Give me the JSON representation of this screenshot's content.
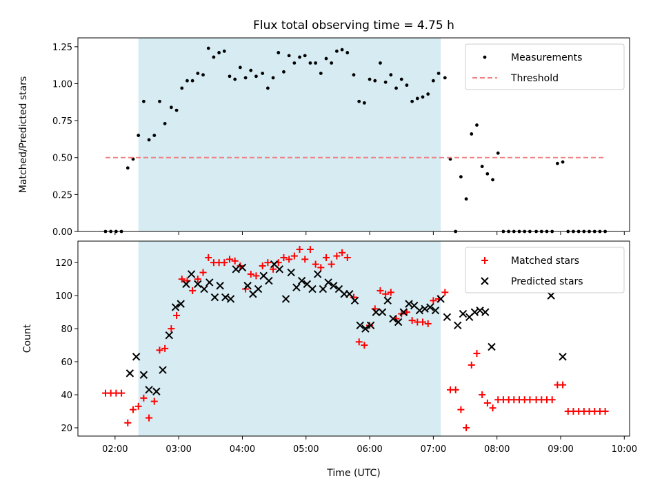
{
  "chart_data": [
    {
      "type": "scatter",
      "title": "Flux total observing time = 4.75 h",
      "xlabel": "",
      "ylabel": "Matched/Predicted stars",
      "xlim": [
        "01:25",
        "10:05"
      ],
      "ylim": [
        0,
        1.31
      ],
      "yticks": [
        "0.00",
        "0.25",
        "0.50",
        "0.75",
        "1.00",
        "1.25"
      ],
      "xticks": [
        "02:00",
        "03:00",
        "04:00",
        "05:00",
        "06:00",
        "07:00",
        "08:00",
        "09:00",
        "10:00"
      ],
      "shaded_interval": [
        "02:22",
        "07:07"
      ],
      "legend_position": "upper-right",
      "series": [
        {
          "name": "Measurements",
          "marker": "dot",
          "color": "#000000",
          "x": [
            "01:51",
            "01:56",
            "02:01",
            "02:06",
            "02:12",
            "02:17",
            "02:22",
            "02:27",
            "02:32",
            "02:37",
            "02:42",
            "02:47",
            "02:53",
            "02:58",
            "03:03",
            "03:08",
            "03:13",
            "03:18",
            "03:23",
            "03:28",
            "03:33",
            "03:38",
            "03:43",
            "03:48",
            "03:53",
            "03:58",
            "04:03",
            "04:08",
            "04:13",
            "04:19",
            "04:24",
            "04:29",
            "04:34",
            "04:39",
            "04:44",
            "04:49",
            "04:54",
            "04:59",
            "05:04",
            "05:09",
            "05:14",
            "05:19",
            "05:24",
            "05:29",
            "05:34",
            "05:39",
            "05:45",
            "05:50",
            "05:55",
            "06:00",
            "06:05",
            "06:10",
            "06:15",
            "06:20",
            "06:25",
            "06:30",
            "06:35",
            "06:40",
            "06:45",
            "06:50",
            "06:55",
            "07:00",
            "07:05",
            "07:11",
            "07:16",
            "07:21",
            "07:26",
            "07:31",
            "07:36",
            "07:41",
            "07:46",
            "07:51",
            "07:56",
            "08:01",
            "08:06",
            "08:11",
            "08:16",
            "08:21",
            "08:26",
            "08:31",
            "08:37",
            "08:42",
            "08:47",
            "08:52",
            "08:57",
            "09:02",
            "09:07",
            "09:12",
            "09:17",
            "09:22",
            "09:27",
            "09:32",
            "09:37",
            "09:42"
          ],
          "y": [
            0,
            0,
            0,
            0,
            0.43,
            0.49,
            0.65,
            0.88,
            0.62,
            0.65,
            0.88,
            0.73,
            0.84,
            0.82,
            0.97,
            1.02,
            1.02,
            1.07,
            1.06,
            1.24,
            1.18,
            1.21,
            1.22,
            1.05,
            1.03,
            1.11,
            1.04,
            1.09,
            1.05,
            1.07,
            0.97,
            1.04,
            1.21,
            1.08,
            1.19,
            1.14,
            1.18,
            1.19,
            1.14,
            1.14,
            1.07,
            1.17,
            1.14,
            1.22,
            1.23,
            1.21,
            1.06,
            0.88,
            0.87,
            1.03,
            1.02,
            1.14,
            1.01,
            1.06,
            0.97,
            1.03,
            0.99,
            0.88,
            0.9,
            0.91,
            0.93,
            1.02,
            1.07,
            1.04,
            0.49,
            0,
            0.37,
            0.22,
            0.66,
            0.72,
            0.44,
            0.39,
            0.35,
            0.53,
            0,
            0,
            0,
            0,
            0,
            0,
            0,
            0,
            0,
            0,
            0.46,
            0.47,
            0,
            0,
            0,
            0,
            0,
            0,
            0,
            0
          ]
        },
        {
          "name": "Threshold",
          "marker": "dashed-line",
          "color": "#f08080",
          "x": [
            "01:51",
            "09:42"
          ],
          "y": [
            0.5,
            0.5
          ]
        }
      ]
    },
    {
      "type": "scatter",
      "title": "",
      "xlabel": "Time (UTC)",
      "ylabel": "Count",
      "xlim": [
        "01:25",
        "10:05"
      ],
      "ylim": [
        15,
        133
      ],
      "yticks": [
        "20",
        "40",
        "60",
        "80",
        "100",
        "120"
      ],
      "xticks": [
        "02:00",
        "03:00",
        "04:00",
        "05:00",
        "06:00",
        "07:00",
        "08:00",
        "09:00",
        "10:00"
      ],
      "shaded_interval": [
        "02:22",
        "07:07"
      ],
      "legend_position": "upper-right",
      "series": [
        {
          "name": "Matched stars",
          "marker": "plus",
          "color": "#ff0000",
          "x": [
            "01:51",
            "01:56",
            "02:01",
            "02:06",
            "02:12",
            "02:17",
            "02:22",
            "02:27",
            "02:32",
            "02:37",
            "02:42",
            "02:47",
            "02:53",
            "02:58",
            "03:03",
            "03:08",
            "03:13",
            "03:18",
            "03:23",
            "03:28",
            "03:33",
            "03:38",
            "03:43",
            "03:48",
            "03:53",
            "03:58",
            "04:03",
            "04:08",
            "04:13",
            "04:19",
            "04:24",
            "04:29",
            "04:34",
            "04:39",
            "04:44",
            "04:49",
            "04:54",
            "04:59",
            "05:04",
            "05:09",
            "05:14",
            "05:19",
            "05:24",
            "05:29",
            "05:34",
            "05:39",
            "05:45",
            "05:50",
            "05:55",
            "06:00",
            "06:05",
            "06:10",
            "06:15",
            "06:20",
            "06:25",
            "06:30",
            "06:35",
            "06:40",
            "06:45",
            "06:50",
            "06:55",
            "07:00",
            "07:05",
            "07:11",
            "07:16",
            "07:21",
            "07:26",
            "07:31",
            "07:36",
            "07:41",
            "07:46",
            "07:51",
            "07:56",
            "08:01",
            "08:06",
            "08:11",
            "08:16",
            "08:21",
            "08:26",
            "08:31",
            "08:37",
            "08:42",
            "08:47",
            "08:52",
            "08:57",
            "09:02",
            "09:07",
            "09:12",
            "09:17",
            "09:22",
            "09:27",
            "09:32",
            "09:37",
            "09:42"
          ],
          "y": [
            41,
            41,
            41,
            41,
            23,
            31,
            33,
            38,
            26,
            36,
            67,
            68,
            80,
            88,
            110,
            109,
            103,
            110,
            114,
            123,
            120,
            120,
            120,
            122,
            121,
            118,
            104,
            113,
            112,
            118,
            120,
            116,
            120,
            123,
            122,
            124,
            128,
            122,
            128,
            119,
            117,
            123,
            119,
            124,
            126,
            123,
            99,
            72,
            70,
            82,
            92,
            103,
            101,
            102,
            86,
            89,
            90,
            85,
            84,
            84,
            83,
            97,
            98,
            102,
            43,
            43,
            31,
            20,
            58,
            65,
            40,
            35,
            32,
            37,
            37,
            37,
            37,
            37,
            37,
            37,
            37,
            37,
            37,
            37,
            46,
            46,
            30,
            30,
            30,
            30,
            30,
            30,
            30,
            30
          ]
        },
        {
          "name": "Predicted stars",
          "marker": "cross",
          "color": "#000000",
          "x": [
            "02:14",
            "02:20",
            "02:27",
            "02:32",
            "02:39",
            "02:45",
            "02:51",
            "02:57",
            "03:02",
            "03:07",
            "03:12",
            "03:18",
            "03:24",
            "03:29",
            "03:34",
            "03:39",
            "03:44",
            "03:49",
            "03:54",
            "04:00",
            "04:05",
            "04:10",
            "04:15",
            "04:20",
            "04:25",
            "04:30",
            "04:35",
            "04:41",
            "04:46",
            "04:51",
            "04:56",
            "05:01",
            "05:06",
            "05:11",
            "05:16",
            "05:21",
            "05:26",
            "05:31",
            "05:36",
            "05:41",
            "05:46",
            "05:51",
            "05:56",
            "06:01",
            "06:06",
            "06:12",
            "06:17",
            "06:22",
            "06:27",
            "06:32",
            "06:37",
            "06:42",
            "06:47",
            "06:52",
            "06:57",
            "07:02",
            "07:07",
            "07:13",
            "07:23",
            "07:28",
            "07:34",
            "07:39",
            "07:44",
            "07:49",
            "07:55",
            "08:51",
            "09:02"
          ],
          "y": [
            53,
            63,
            52,
            43,
            42,
            55,
            76,
            93,
            95,
            107,
            113,
            107,
            104,
            108,
            99,
            106,
            99,
            98,
            116,
            117,
            106,
            101,
            104,
            112,
            109,
            119,
            116,
            98,
            114,
            105,
            109,
            107,
            104,
            113,
            104,
            108,
            106,
            104,
            101,
            101,
            97,
            82,
            80,
            82,
            90,
            90,
            97,
            86,
            84,
            90,
            95,
            94,
            91,
            92,
            93,
            91,
            98,
            87,
            82,
            89,
            87,
            90,
            91,
            90,
            69,
            100,
            63
          ]
        }
      ]
    }
  ]
}
